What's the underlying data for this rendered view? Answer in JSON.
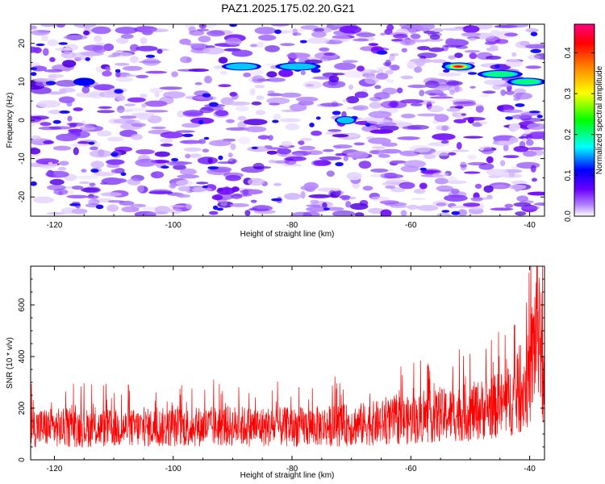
{
  "figure": {
    "title": "PAZ1.2025.175.02.20.G21"
  },
  "chart_data": [
    {
      "type": "heatmap",
      "xlabel": "Height of straight line (km)",
      "ylabel": "Frequency (Hz)",
      "xlim": [
        -124,
        -37.5
      ],
      "ylim": [
        -25,
        25
      ],
      "xticks": [
        -120,
        -100,
        -80,
        -60,
        -40
      ],
      "yticks": [
        -20,
        -10,
        0,
        10,
        20
      ],
      "colorbar": {
        "label": "Normalized spectral amplitude",
        "range": [
          0,
          0.47
        ],
        "ticks": [
          0.0,
          0.1,
          0.2,
          0.3,
          0.4
        ],
        "colors": [
          "#ffffff",
          "#b080ff",
          "#6a00ff",
          "#0000ff",
          "#00ffff",
          "#00ff00",
          "#ffff00",
          "#ff8000",
          "#ff0000",
          "#ff0080"
        ]
      },
      "features": [
        {
          "x": [
            -54,
            -50
          ],
          "y": 14,
          "peak": 0.45
        },
        {
          "x": [
            -48,
            -42
          ],
          "y": 12,
          "peak": 0.25
        },
        {
          "x": [
            -43,
            -38
          ],
          "y": 10,
          "peak": 0.2
        },
        {
          "x": [
            -91,
            -86
          ],
          "y": 14,
          "peak": 0.12
        },
        {
          "x": [
            -82,
            -76
          ],
          "y": 14,
          "peak": 0.14
        },
        {
          "x": [
            -72,
            -70
          ],
          "y": 0,
          "peak": 0.12
        },
        {
          "x": [
            -116,
            -114
          ],
          "y": 10,
          "peak": 0.1
        }
      ]
    },
    {
      "type": "line",
      "xlabel": "Height of straight line (km)",
      "ylabel": "SNR (10 * v/v)",
      "xlim": [
        -124,
        -37.5
      ],
      "ylim": [
        0,
        750
      ],
      "xticks": [
        -120,
        -100,
        -80,
        -60,
        -40
      ],
      "yticks": [
        0,
        200,
        400,
        600
      ],
      "series": [
        {
          "color": "#ff0000",
          "x": [
            -124,
            -110,
            -100,
            -90,
            -80,
            -70,
            -60,
            -55,
            -50,
            -45,
            -42,
            -40,
            -39,
            -38.5,
            -38,
            -37.5
          ],
          "values": [
            140,
            135,
            140,
            145,
            140,
            150,
            170,
            190,
            205,
            235,
            270,
            350,
            550,
            650,
            420,
            280
          ]
        }
      ]
    }
  ]
}
